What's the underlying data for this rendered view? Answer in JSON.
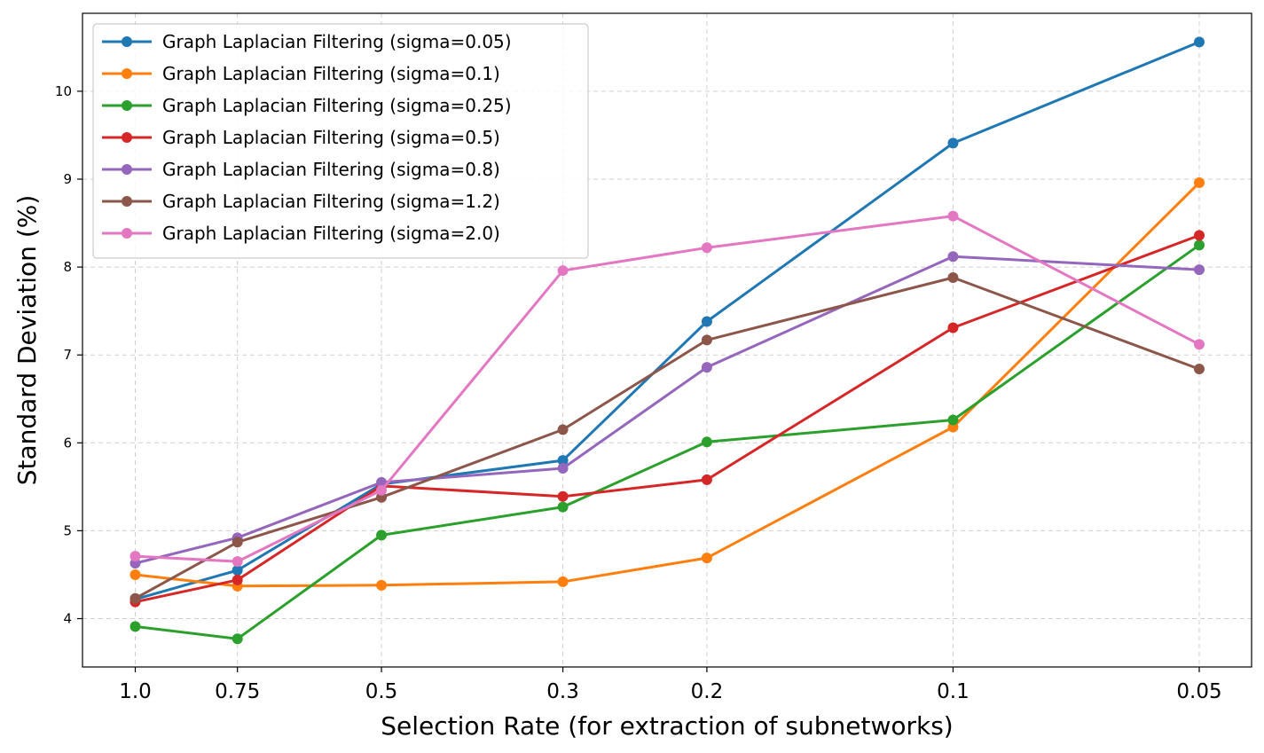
{
  "chart_data": {
    "type": "line",
    "title": "",
    "xlabel": "Selection Rate (for extraction of subnetworks)",
    "ylabel": "Standard Deviation (%)",
    "x_scale": "log (reversed)",
    "x": [
      1.0,
      0.75,
      0.5,
      0.3,
      0.2,
      0.1,
      0.05
    ],
    "x_tick_labels": [
      "1.0",
      "0.75",
      "0.5",
      "0.3",
      "0.2",
      "0.1",
      "0.05"
    ],
    "y_ticks": [
      4,
      5,
      6,
      7,
      8,
      9,
      10
    ],
    "ylim": [
      3.45,
      10.9
    ],
    "grid": true,
    "legend_position": "upper-left",
    "series": [
      {
        "name": "Graph Laplacian Filtering (sigma=0.05)",
        "color": "#1f77b4",
        "values": [
          4.22,
          4.55,
          5.53,
          5.8,
          7.38,
          9.41,
          10.56
        ]
      },
      {
        "name": "Graph Laplacian Filtering (sigma=0.1)",
        "color": "#ff7f0e",
        "values": [
          4.5,
          4.37,
          4.38,
          4.42,
          4.69,
          6.18,
          8.96
        ]
      },
      {
        "name": "Graph Laplacian Filtering (sigma=0.25)",
        "color": "#2ca02c",
        "values": [
          3.91,
          3.77,
          4.95,
          5.27,
          6.01,
          6.26,
          8.25
        ]
      },
      {
        "name": "Graph Laplacian Filtering (sigma=0.5)",
        "color": "#d62728",
        "values": [
          4.19,
          4.44,
          5.51,
          5.39,
          5.58,
          7.31,
          8.36
        ]
      },
      {
        "name": "Graph Laplacian Filtering (sigma=0.8)",
        "color": "#9467bd",
        "values": [
          4.63,
          4.92,
          5.55,
          5.71,
          6.86,
          8.12,
          7.97
        ]
      },
      {
        "name": "Graph Laplacian Filtering (sigma=1.2)",
        "color": "#8c564b",
        "values": [
          4.23,
          4.87,
          5.38,
          6.15,
          7.17,
          7.88,
          6.84
        ]
      },
      {
        "name": "Graph Laplacian Filtering (sigma=2.0)",
        "color": "#e377c2",
        "values": [
          4.71,
          4.65,
          5.46,
          7.96,
          8.22,
          8.58,
          7.12
        ]
      }
    ]
  }
}
